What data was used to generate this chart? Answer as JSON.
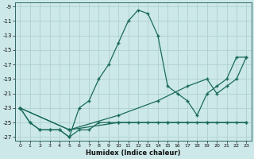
{
  "xlabel": "Humidex (Indice chaleur)",
  "background_color": "#cce8e8",
  "grid_color": "#aacccc",
  "line_color": "#1a6b5a",
  "xlim": [
    -0.5,
    23.5
  ],
  "ylim": [
    -27.5,
    -8.5
  ],
  "xticks": [
    0,
    1,
    2,
    3,
    4,
    5,
    6,
    7,
    8,
    9,
    10,
    11,
    12,
    13,
    14,
    15,
    16,
    17,
    18,
    19,
    20,
    21,
    22,
    23
  ],
  "yticks": [
    -9,
    -11,
    -13,
    -15,
    -17,
    -19,
    -21,
    -23,
    -25,
    -27
  ],
  "curve_x": [
    0,
    1,
    2,
    3,
    4,
    5,
    6,
    7,
    8,
    9,
    10,
    11,
    12,
    13,
    14,
    15,
    16,
    17,
    18,
    19,
    20,
    21,
    22,
    23
  ],
  "curve_y": [
    -23,
    -25,
    -26,
    -26,
    -26,
    -27,
    -23,
    -22,
    -19,
    -17,
    -14,
    -11,
    -9.5,
    -10,
    -13,
    -20,
    -21,
    -22,
    -24,
    -21,
    -20,
    -19,
    -16,
    -16
  ],
  "flat1_x": [
    0,
    1,
    2,
    3,
    4,
    5,
    6,
    7,
    8,
    9,
    10,
    11,
    12,
    13,
    14,
    15,
    16,
    17,
    18,
    19,
    20,
    21,
    22,
    23
  ],
  "flat1_y": [
    -23,
    -25,
    -26,
    -26,
    -26,
    -27,
    -26,
    -26,
    -25,
    -25,
    -25,
    -25,
    -25,
    -25,
    -25,
    -25,
    -25,
    -25,
    -25,
    -25,
    -25,
    -25,
    -25,
    -25
  ],
  "flat2_x": [
    0,
    5,
    10,
    15,
    19,
    23
  ],
  "flat2_y": [
    -23,
    -26,
    -25,
    -25,
    -25,
    -25
  ],
  "diag_x": [
    0,
    5,
    10,
    14,
    17,
    19,
    20,
    21,
    22,
    23
  ],
  "diag_y": [
    -23,
    -26,
    -24,
    -22,
    -20,
    -19,
    -21,
    -20,
    -19,
    -16
  ]
}
